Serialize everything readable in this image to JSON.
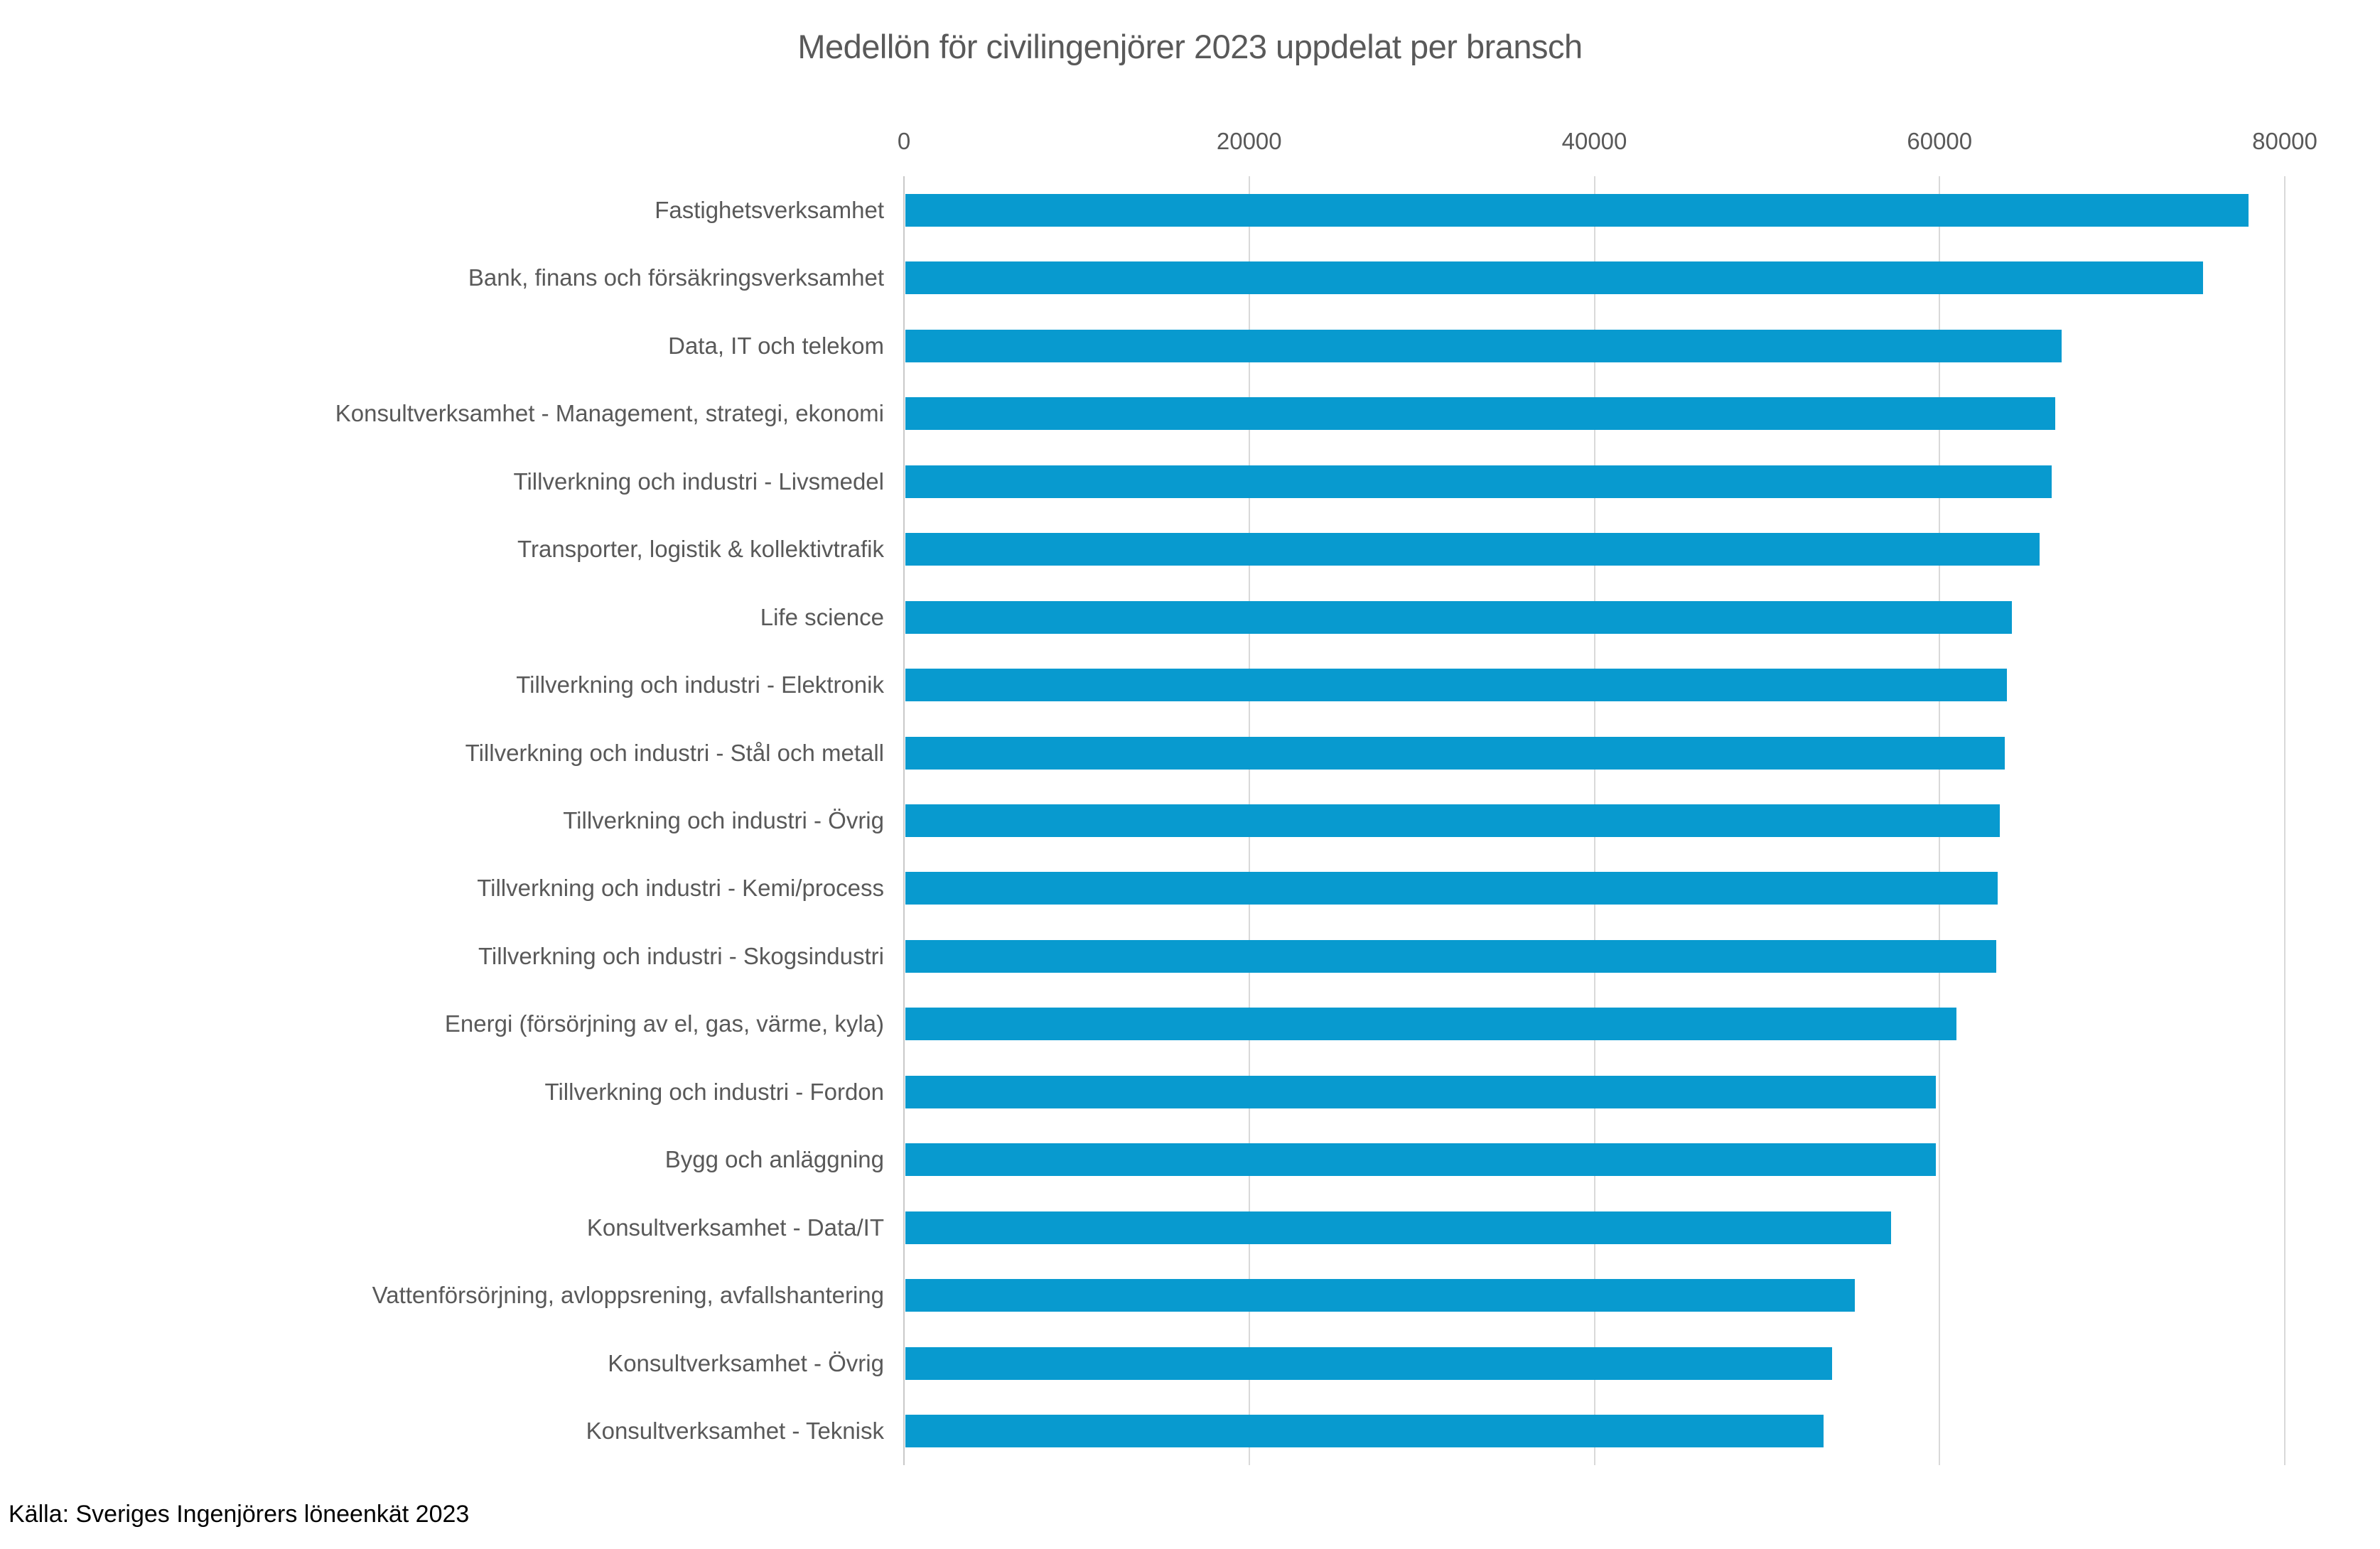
{
  "source": "Källa: Sveriges Ingenjörers löneenkät 2023",
  "colors": {
    "bar": "#089ACF",
    "gridline": "#D9D9D9",
    "zero_axis_line": "#C9C9C9",
    "tick_label_text": "#595959",
    "category_label_text": "#595959",
    "title_text": "#595959",
    "source_text": "#000000"
  },
  "chart_data": {
    "type": "bar",
    "orientation": "horizontal",
    "title": "Medellön för civilingenjörer 2023 uppdelat per bransch",
    "xlabel": "",
    "ylabel": "",
    "xlim": [
      0,
      80000
    ],
    "x_ticks": [
      0,
      20000,
      40000,
      60000,
      80000
    ],
    "grid": "vertical-only",
    "legend": "none",
    "sort_order": "descending",
    "categories": [
      "Fastighetsverksamhet",
      "Bank, finans och försäkringsverksamhet",
      "Data, IT och telekom",
      "Konsultverksamhet - Management, strategi, ekonomi",
      "Tillverkning och industri - Livsmedel",
      "Transporter, logistik & kollektivtrafik",
      "Life science",
      "Tillverkning och industri - Elektronik",
      "Tillverkning och industri - Stål och metall",
      "Tillverkning och industri - Övrig",
      "Tillverkning och industri - Kemi/process",
      "Tillverkning och industri - Skogsindustri",
      "Energi (försörjning av el, gas, värme, kyla)",
      "Tillverkning och industri - Fordon",
      "Bygg och anläggning",
      "Konsultverksamhet - Data/IT",
      "Vattenförsörjning, avloppsrening, avfallshantering",
      "Konsultverksamhet - Övrig",
      "Konsultverksamhet - Teknisk"
    ],
    "values": [
      77800,
      75200,
      67000,
      66600,
      66400,
      65700,
      64100,
      63800,
      63700,
      63400,
      63300,
      63200,
      60900,
      59700,
      59700,
      57100,
      55000,
      53700,
      53200
    ]
  }
}
